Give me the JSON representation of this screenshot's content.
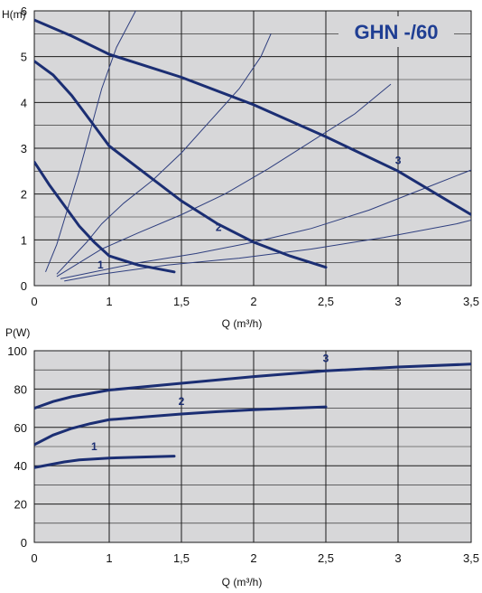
{
  "colors": {
    "plot_bg": "#d7d7d9",
    "grid": "#1a1a1a",
    "curve": "#1b2e73",
    "system": "#2f3f7f",
    "title": "#1f3e93"
  },
  "chart_data": [
    {
      "type": "line",
      "title": "GHN -/60",
      "xlabel": "Q (m³/h)",
      "ylabel": "H(m)",
      "xlim": [
        0,
        3.5
      ],
      "ylim": [
        0,
        6
      ],
      "x_ticks": [
        "0",
        "1",
        "1,5",
        "2",
        "2,5",
        "3",
        "3,5"
      ],
      "y_ticks": [
        "0",
        "1",
        "2",
        "3",
        "4",
        "5",
        "6"
      ],
      "grid": true,
      "series": [
        {
          "name": "1",
          "x": [
            0,
            0.2,
            0.4,
            0.6,
            0.8,
            1.0,
            1.2,
            1.45
          ],
          "y": [
            2.7,
            2.2,
            1.75,
            1.3,
            0.95,
            0.65,
            0.45,
            0.3
          ]
        },
        {
          "name": "2",
          "x": [
            0,
            0.25,
            0.5,
            0.75,
            1.0,
            1.25,
            1.5,
            1.75,
            2.0,
            2.25,
            2.5
          ],
          "y": [
            4.9,
            4.6,
            4.15,
            3.6,
            3.05,
            2.45,
            1.85,
            1.35,
            0.95,
            0.65,
            0.4
          ]
        },
        {
          "name": "3",
          "x": [
            0,
            0.5,
            1.0,
            1.5,
            2.0,
            2.5,
            3.0,
            3.5,
            3.9
          ],
          "y": [
            5.8,
            5.45,
            5.05,
            4.55,
            3.95,
            3.25,
            2.5,
            1.55,
            0.85
          ]
        }
      ],
      "system_curves": [
        {
          "x": [
            0.15,
            0.3,
            0.45,
            0.6,
            0.75,
            0.9,
            1.05,
            1.2,
            1.32
          ],
          "y": [
            0.3,
            0.9,
            1.7,
            2.5,
            3.4,
            4.3,
            5.2,
            6.1,
            6.8
          ]
        },
        {
          "x": [
            0.3,
            0.5,
            0.7,
            0.9,
            1.1,
            1.3,
            1.5,
            1.7,
            1.9,
            2.05,
            2.12
          ],
          "y": [
            0.25,
            0.6,
            0.95,
            1.35,
            1.8,
            2.3,
            2.9,
            3.6,
            4.3,
            5.0,
            5.5
          ]
        },
        {
          "x": [
            0.3,
            0.6,
            0.9,
            1.2,
            1.5,
            1.8,
            2.1,
            2.4,
            2.7,
            2.95
          ],
          "y": [
            0.2,
            0.5,
            0.8,
            1.15,
            1.55,
            2.0,
            2.55,
            3.15,
            3.75,
            4.4
          ]
        },
        {
          "x": [
            0.35,
            0.8,
            1.2,
            1.6,
            2.0,
            2.4,
            2.8,
            3.2,
            3.6,
            4.0,
            4.3,
            4.5
          ],
          "y": [
            0.15,
            0.3,
            0.5,
            0.7,
            0.95,
            1.25,
            1.65,
            2.15,
            2.65,
            3.25,
            3.75,
            4.2
          ]
        },
        {
          "x": [
            0.4,
            0.9,
            1.4,
            1.9,
            2.4,
            2.9,
            3.4,
            3.9,
            4.4,
            4.9,
            5.5,
            5.9
          ],
          "y": [
            0.1,
            0.25,
            0.45,
            0.6,
            0.8,
            1.05,
            1.35,
            1.75,
            2.3,
            2.9,
            3.65,
            4.3
          ]
        }
      ]
    },
    {
      "type": "line",
      "title": "",
      "xlabel": "Q (m³/h)",
      "ylabel": "P(W)",
      "xlim": [
        0,
        3.5
      ],
      "ylim": [
        0,
        100
      ],
      "x_ticks": [
        "0",
        "1",
        "1,5",
        "2",
        "2,5",
        "3",
        "3,5"
      ],
      "y_ticks": [
        "0",
        "20",
        "40",
        "60",
        "80",
        "100"
      ],
      "grid": true,
      "series": [
        {
          "name": "1",
          "x": [
            0,
            0.2,
            0.4,
            0.6,
            0.8,
            1.0,
            1.2,
            1.45
          ],
          "y": [
            39,
            40.5,
            42,
            43,
            43.5,
            44,
            44.5,
            45
          ]
        },
        {
          "name": "2",
          "x": [
            0,
            0.25,
            0.5,
            0.75,
            1.0,
            1.25,
            1.5,
            1.75,
            2.0,
            2.25,
            2.5
          ],
          "y": [
            51,
            56,
            59.5,
            62,
            64,
            65.5,
            67,
            68.2,
            69.2,
            70,
            70.7
          ]
        },
        {
          "name": "3",
          "x": [
            0,
            0.25,
            0.5,
            1.0,
            1.5,
            2.0,
            2.5,
            3.0,
            3.5,
            3.9
          ],
          "y": [
            70,
            73.5,
            76,
            79.5,
            83,
            86.5,
            89.5,
            91.5,
            93,
            93
          ]
        }
      ]
    }
  ]
}
